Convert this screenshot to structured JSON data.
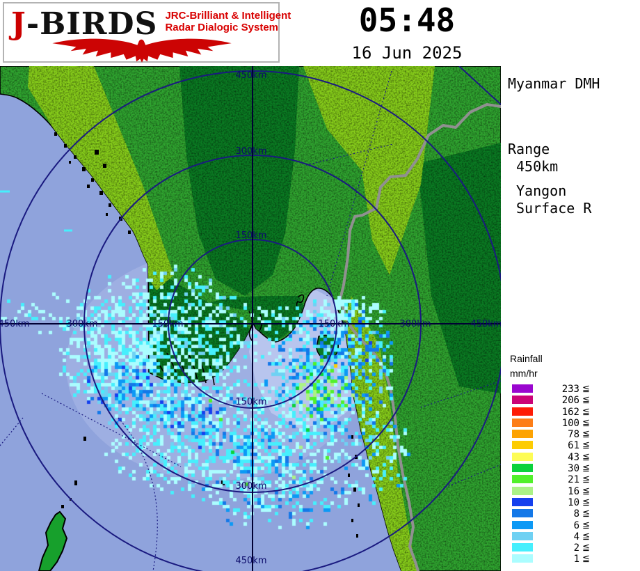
{
  "header": {
    "logo_j": "J",
    "logo_rest": "-BIRDS",
    "logo_sub1": "JRC-Brilliant & Intelligent",
    "logo_sub2": "Radar  Dialogic  System",
    "time": "05:48",
    "date": "16 Jun 2025"
  },
  "sidebar": {
    "agency": "Myanmar DMH",
    "range_label": "Range",
    "range_value": "450km",
    "site": "Yangon",
    "product": "Surface R"
  },
  "legend": {
    "title": "Rainfall",
    "unit": "mm/hr",
    "symbol": "≦",
    "rows": [
      {
        "value": "233",
        "color": "#9A06CF"
      },
      {
        "value": "206",
        "color": "#CB0377"
      },
      {
        "value": "162",
        "color": "#FE1C06"
      },
      {
        "value": "100",
        "color": "#FD7E17"
      },
      {
        "value": "78",
        "color": "#FDA303"
      },
      {
        "value": "61",
        "color": "#FDCC03"
      },
      {
        "value": "43",
        "color": "#FDFC55"
      },
      {
        "value": "30",
        "color": "#0BD23B"
      },
      {
        "value": "21",
        "color": "#52F02B"
      },
      {
        "value": "16",
        "color": "#ABF286"
      },
      {
        "value": "10",
        "color": "#1540EE"
      },
      {
        "value": "8",
        "color": "#1478E8"
      },
      {
        "value": "6",
        "color": "#0C99F5"
      },
      {
        "value": "4",
        "color": "#6FD1F3"
      },
      {
        "value": "2",
        "color": "#46EFFD"
      },
      {
        "value": "1",
        "color": "#ABFDFF"
      }
    ]
  },
  "map": {
    "ring_labels": {
      "top": [
        "450km",
        "300km",
        "150km"
      ],
      "bottom": [
        "150km",
        "300km",
        "450km"
      ],
      "left": [
        "450km",
        "300km",
        "150km"
      ],
      "right": [
        "150km",
        "300km",
        "450km"
      ]
    },
    "colors": {
      "sea": "#8FA3DC",
      "sea_light": "#B9C6EE",
      "land_low": "#0A7A22",
      "land_mid": "#2FA32F",
      "land_high": "#86CC1A",
      "ring": "#1A1A80",
      "crosshair": "#000033",
      "border": "#909090",
      "coast": "#000000"
    }
  }
}
